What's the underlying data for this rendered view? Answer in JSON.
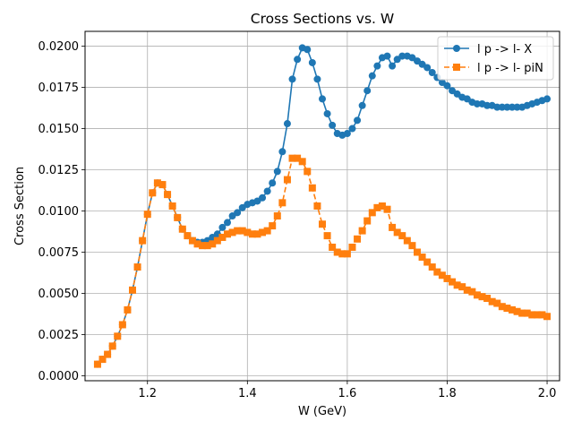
{
  "chart_data": {
    "type": "line",
    "title": "Cross Sections vs. W",
    "xlabel": "W (GeV)",
    "ylabel": "Cross Section",
    "xlim": [
      1.075,
      2.025
    ],
    "ylim": [
      -0.0003,
      0.0209
    ],
    "xticks": [
      1.2,
      1.4,
      1.6,
      1.8,
      2.0
    ],
    "xtick_labels": [
      "1.2",
      "1.4",
      "1.6",
      "1.8",
      "2.0"
    ],
    "yticks": [
      0.0,
      0.0025,
      0.005,
      0.0075,
      0.01,
      0.0125,
      0.015,
      0.0175,
      0.02
    ],
    "ytick_labels": [
      "0.0000",
      "0.0025",
      "0.0050",
      "0.0075",
      "0.0100",
      "0.0125",
      "0.0150",
      "0.0175",
      "0.0200"
    ],
    "grid": true,
    "legend_position": "top-right",
    "x": [
      1.1,
      1.11,
      1.12,
      1.13,
      1.14,
      1.15,
      1.16,
      1.17,
      1.18,
      1.19,
      1.2,
      1.21,
      1.22,
      1.23,
      1.24,
      1.25,
      1.26,
      1.27,
      1.28,
      1.29,
      1.3,
      1.31,
      1.32,
      1.33,
      1.34,
      1.35,
      1.36,
      1.37,
      1.38,
      1.39,
      1.4,
      1.41,
      1.42,
      1.43,
      1.44,
      1.45,
      1.46,
      1.47,
      1.48,
      1.49,
      1.5,
      1.51,
      1.52,
      1.53,
      1.54,
      1.55,
      1.56,
      1.57,
      1.58,
      1.59,
      1.6,
      1.61,
      1.62,
      1.63,
      1.64,
      1.65,
      1.66,
      1.67,
      1.68,
      1.69,
      1.7,
      1.71,
      1.72,
      1.73,
      1.74,
      1.75,
      1.76,
      1.77,
      1.78,
      1.79,
      1.8,
      1.81,
      1.82,
      1.83,
      1.84,
      1.85,
      1.86,
      1.87,
      1.88,
      1.89,
      1.9,
      1.91,
      1.92,
      1.93,
      1.94,
      1.95,
      1.96,
      1.97,
      1.98,
      1.99,
      2.0
    ],
    "series": [
      {
        "name": "l p -> l- X",
        "color": "#1f77b4",
        "marker": "circle",
        "linestyle": "solid",
        "values": [
          0.0007,
          0.001,
          0.0013,
          0.0018,
          0.0024,
          0.0031,
          0.004,
          0.0052,
          0.0066,
          0.0082,
          0.0098,
          0.0111,
          0.0117,
          0.0116,
          0.011,
          0.0103,
          0.0096,
          0.0089,
          0.0085,
          0.0082,
          0.0081,
          0.0081,
          0.0082,
          0.0084,
          0.0086,
          0.009,
          0.0093,
          0.0097,
          0.0099,
          0.0102,
          0.0104,
          0.0105,
          0.0106,
          0.0108,
          0.0112,
          0.0117,
          0.0124,
          0.0136,
          0.0153,
          0.018,
          0.0192,
          0.0199,
          0.0198,
          0.019,
          0.018,
          0.0168,
          0.0159,
          0.0152,
          0.0147,
          0.0146,
          0.0147,
          0.015,
          0.0155,
          0.0164,
          0.0173,
          0.0182,
          0.0188,
          0.0193,
          0.0194,
          0.0188,
          0.0192,
          0.0194,
          0.0194,
          0.0193,
          0.0191,
          0.0189,
          0.0187,
          0.0184,
          0.0181,
          0.0178,
          0.0176,
          0.0173,
          0.0171,
          0.0169,
          0.0168,
          0.0166,
          0.0165,
          0.0165,
          0.0164,
          0.0164,
          0.0163,
          0.0163,
          0.0163,
          0.0163,
          0.0163,
          0.0163,
          0.0164,
          0.0165,
          0.0166,
          0.0167,
          0.0168
        ]
      },
      {
        "name": "l p -> l- piN",
        "color": "#ff7f0e",
        "marker": "square",
        "linestyle": "dashed",
        "values": [
          0.0007,
          0.001,
          0.0013,
          0.0018,
          0.0024,
          0.0031,
          0.004,
          0.0052,
          0.0066,
          0.0082,
          0.0098,
          0.0111,
          0.0117,
          0.0116,
          0.011,
          0.0103,
          0.0096,
          0.0089,
          0.0085,
          0.0082,
          0.008,
          0.0079,
          0.0079,
          0.008,
          0.0082,
          0.0084,
          0.0086,
          0.0087,
          0.0088,
          0.0088,
          0.0087,
          0.0086,
          0.0086,
          0.0087,
          0.0088,
          0.0091,
          0.0097,
          0.0105,
          0.0119,
          0.0132,
          0.0132,
          0.013,
          0.0124,
          0.0114,
          0.0103,
          0.0092,
          0.0085,
          0.0078,
          0.0075,
          0.0074,
          0.0074,
          0.0078,
          0.0083,
          0.0088,
          0.0094,
          0.0099,
          0.0102,
          0.0103,
          0.0101,
          0.009,
          0.0087,
          0.0085,
          0.0082,
          0.0079,
          0.0075,
          0.0072,
          0.0069,
          0.0066,
          0.0063,
          0.0061,
          0.0059,
          0.0057,
          0.0055,
          0.0054,
          0.0052,
          0.0051,
          0.0049,
          0.0048,
          0.0047,
          0.0045,
          0.0044,
          0.0042,
          0.0041,
          0.004,
          0.0039,
          0.0038,
          0.0038,
          0.0037,
          0.0037,
          0.0037,
          0.0036
        ]
      }
    ]
  }
}
